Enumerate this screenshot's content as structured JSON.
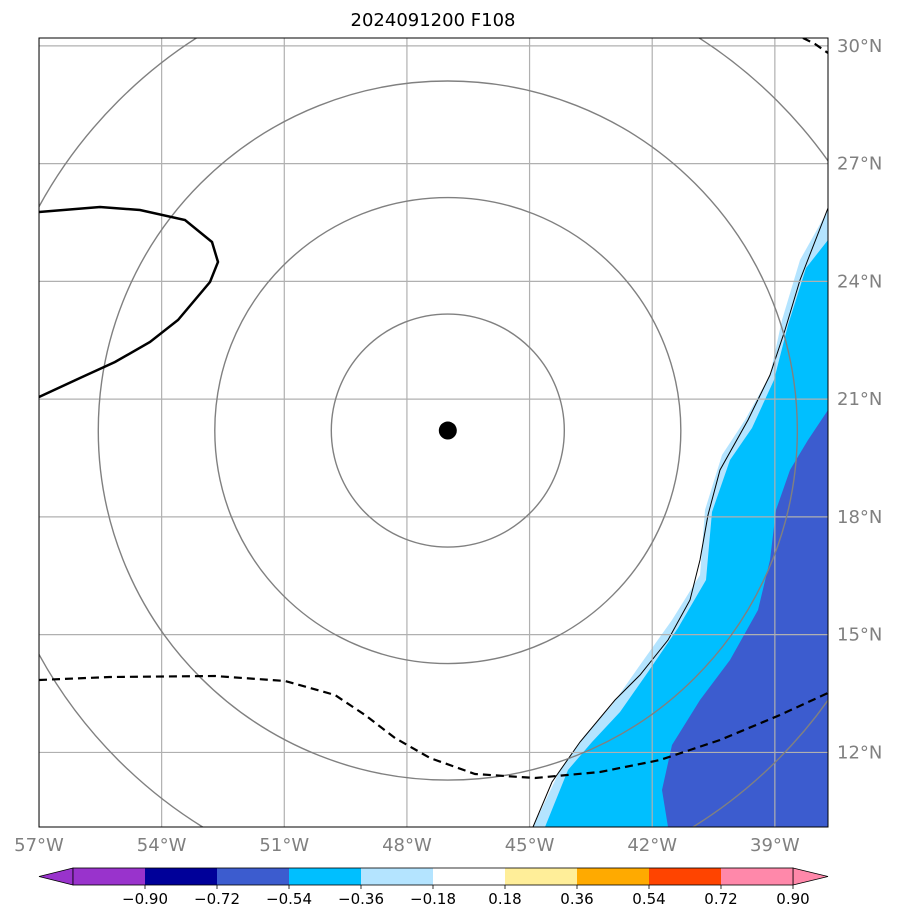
{
  "title": "2024091200 F108",
  "map": {
    "extent": {
      "lon_min": -57,
      "lon_max": -37.7,
      "lat_min": 10.1,
      "lat_max": 30.2
    },
    "lon_ticks": [
      {
        "value": -57,
        "label": "57°W"
      },
      {
        "value": -54,
        "label": "54°W"
      },
      {
        "value": -51,
        "label": "51°W"
      },
      {
        "value": -48,
        "label": "48°W"
      },
      {
        "value": -45,
        "label": "45°W"
      },
      {
        "value": -42,
        "label": "42°W"
      },
      {
        "value": -39,
        "label": "39°W"
      }
    ],
    "lat_ticks": [
      {
        "value": 12,
        "label": "12°N"
      },
      {
        "value": 15,
        "label": "15°N"
      },
      {
        "value": 18,
        "label": "18°N"
      },
      {
        "value": 21,
        "label": "21°N"
      },
      {
        "value": 24,
        "label": "24°N"
      },
      {
        "value": 27,
        "label": "27°N"
      },
      {
        "value": 30,
        "label": "30°N"
      }
    ],
    "storm_center": {
      "lon": -47.0,
      "lat": 20.2
    },
    "range_rings_deg": [
      2.85,
      5.7,
      8.55,
      11.4
    ],
    "colors": {
      "grid": "#b0b0b0",
      "rings": "#808080"
    }
  },
  "colorbar": {
    "labels": [
      "−0.90",
      "−0.72",
      "−0.54",
      "−0.36",
      "−0.18",
      "0.18",
      "0.36",
      "0.54",
      "0.72",
      "0.90"
    ],
    "under_color": "#9933cc",
    "over_color": "#ff88aa",
    "colors": [
      "#000099",
      "#3c5ccf",
      "#00bfff",
      "#b4e4ff",
      "#ffffff",
      "#ffee99",
      "#ffaa00",
      "#ff4400",
      "#aa2222"
    ]
  }
}
